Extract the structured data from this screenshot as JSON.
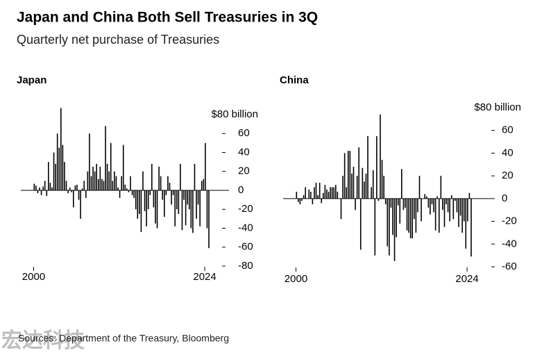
{
  "title": "Japan and China Both Sell Treasuries in 3Q",
  "subtitle": "Quarterly net purchase of Treasuries",
  "source": "Sources: Department of the Treasury, Bloomberg",
  "watermark": "宏达科技",
  "chart_data": [
    {
      "type": "bar",
      "title": "Japan",
      "color": "#000000",
      "x": [
        2000,
        2000.25,
        2000.5,
        2000.75,
        2001,
        2001.25,
        2001.5,
        2001.75,
        2002,
        2002.25,
        2002.5,
        2002.75,
        2003,
        2003.25,
        2003.5,
        2003.75,
        2004,
        2004.25,
        2004.5,
        2004.75,
        2005,
        2005.25,
        2005.5,
        2005.75,
        2006,
        2006.25,
        2006.5,
        2006.75,
        2007,
        2007.25,
        2007.5,
        2007.75,
        2008,
        2008.25,
        2008.5,
        2008.75,
        2009,
        2009.25,
        2009.5,
        2009.75,
        2010,
        2010.25,
        2010.5,
        2010.75,
        2011,
        2011.25,
        2011.5,
        2011.75,
        2012,
        2012.25,
        2012.5,
        2012.75,
        2013,
        2013.25,
        2013.5,
        2013.75,
        2014,
        2014.25,
        2014.5,
        2014.75,
        2015,
        2015.25,
        2015.5,
        2015.75,
        2016,
        2016.25,
        2016.5,
        2016.75,
        2017,
        2017.25,
        2017.5,
        2017.75,
        2018,
        2018.25,
        2018.5,
        2018.75,
        2019,
        2019.25,
        2019.5,
        2019.75,
        2020,
        2020.25,
        2020.5,
        2020.75,
        2021,
        2021.25,
        2021.5,
        2021.75,
        2022,
        2022.25,
        2022.5,
        2022.75,
        2023,
        2023.25,
        2023.5,
        2023.75,
        2024,
        2024.25,
        2024.5
      ],
      "values": [
        7,
        5,
        -3,
        3,
        -5,
        4,
        10,
        -6,
        30,
        8,
        3,
        40,
        28,
        60,
        45,
        87,
        48,
        30,
        10,
        -3,
        3,
        -2,
        -18,
        5,
        6,
        -10,
        -30,
        2,
        10,
        -8,
        20,
        60,
        15,
        25,
        20,
        28,
        12,
        25,
        12,
        10,
        68,
        28,
        20,
        50,
        10,
        20,
        15,
        3,
        -8,
        15,
        48,
        6,
        2,
        -2,
        15,
        -5,
        -8,
        -20,
        -30,
        -25,
        -44,
        20,
        -22,
        -38,
        -20,
        -5,
        28,
        -18,
        -35,
        -40,
        25,
        15,
        -10,
        -28,
        -5,
        15,
        8,
        -15,
        -5,
        -38,
        -20,
        -25,
        28,
        -42,
        -10,
        -37,
        -15,
        -20,
        -40,
        -45,
        28,
        -30,
        -15,
        -38,
        10,
        12,
        50,
        -40,
        -61
      ],
      "xlim": [
        1998.2,
        2027.4
      ],
      "xticks": [
        2000,
        2024
      ],
      "ylim": [
        -80,
        80
      ],
      "yticks": [
        {
          "value": 80,
          "label": "$80 billion"
        },
        60,
        40,
        20,
        0,
        -20,
        -40,
        -60,
        -80
      ]
    },
    {
      "type": "bar",
      "title": "China",
      "color": "#000000",
      "x": [
        2000,
        2000.25,
        2000.5,
        2000.75,
        2001,
        2001.25,
        2001.5,
        2001.75,
        2002,
        2002.25,
        2002.5,
        2002.75,
        2003,
        2003.25,
        2003.5,
        2003.75,
        2004,
        2004.25,
        2004.5,
        2004.75,
        2005,
        2005.25,
        2005.5,
        2005.75,
        2006,
        2006.25,
        2006.5,
        2006.75,
        2007,
        2007.25,
        2007.5,
        2007.75,
        2008,
        2008.25,
        2008.5,
        2008.75,
        2009,
        2009.25,
        2009.5,
        2009.75,
        2010,
        2010.25,
        2010.5,
        2010.75,
        2011,
        2011.25,
        2011.5,
        2011.75,
        2012,
        2012.25,
        2012.5,
        2012.75,
        2013,
        2013.25,
        2013.5,
        2013.75,
        2014,
        2014.25,
        2014.5,
        2014.75,
        2015,
        2015.25,
        2015.5,
        2015.75,
        2016,
        2016.25,
        2016.5,
        2016.75,
        2017,
        2017.25,
        2017.5,
        2017.75,
        2018,
        2018.25,
        2018.5,
        2018.75,
        2019,
        2019.25,
        2019.5,
        2019.75,
        2020,
        2020.25,
        2020.5,
        2020.75,
        2021,
        2021.25,
        2021.5,
        2021.75,
        2022,
        2022.25,
        2022.5,
        2022.75,
        2023,
        2023.25,
        2023.5,
        2023.75,
        2024,
        2024.25,
        2024.5
      ],
      "values": [
        6,
        -3,
        -5,
        -2,
        3,
        10,
        0,
        8,
        6,
        -5,
        10,
        14,
        3,
        14,
        -4,
        5,
        12,
        8,
        6,
        10,
        10,
        10,
        12,
        6,
        0,
        -18,
        20,
        40,
        10,
        42,
        42,
        22,
        28,
        -10,
        20,
        45,
        -45,
        27,
        15,
        22,
        55,
        0,
        10,
        25,
        -50,
        55,
        -2,
        74,
        34,
        20,
        -5,
        -42,
        -50,
        -8,
        -32,
        -55,
        -34,
        -6,
        -22,
        26,
        -10,
        -8,
        -28,
        -30,
        -35,
        -35,
        -18,
        -30,
        -12,
        20,
        -20,
        0,
        4,
        2,
        -8,
        -14,
        -5,
        -12,
        -28,
        2,
        -30,
        20,
        -10,
        -25,
        -5,
        -12,
        -20,
        3,
        -18,
        -2,
        -12,
        -25,
        -15,
        -30,
        -20,
        -44,
        -20,
        5,
        -51
      ],
      "xlim": [
        1998.2,
        2027.4
      ],
      "xticks": [
        2000,
        2024
      ],
      "ylim": [
        -60,
        80
      ],
      "yticks": [
        {
          "value": 80,
          "label": "$80 billion"
        },
        60,
        40,
        20,
        0,
        -20,
        -40,
        -60
      ]
    }
  ]
}
